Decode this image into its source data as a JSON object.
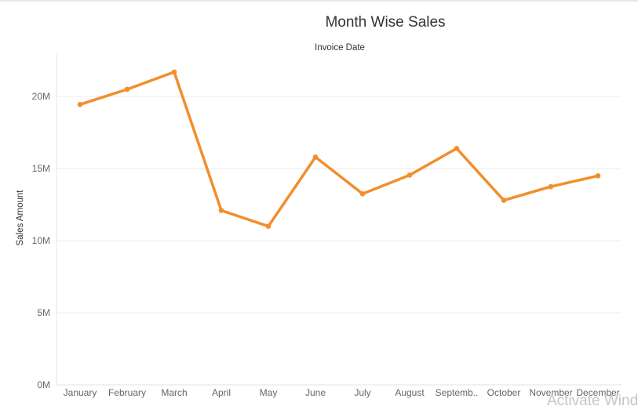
{
  "chart_data": {
    "type": "line",
    "title": "Month Wise Sales",
    "column_header": "Invoice Date",
    "xlabel": "",
    "ylabel": "Sales Amount",
    "categories": [
      "January",
      "February",
      "March",
      "April",
      "May",
      "June",
      "July",
      "August",
      "Septemb..",
      "October",
      "November",
      "December"
    ],
    "values": [
      19.45,
      20.5,
      21.7,
      12.1,
      11.0,
      15.8,
      13.25,
      14.55,
      16.4,
      12.8,
      13.75,
      14.5
    ],
    "unit": "M",
    "ylim": [
      0,
      23
    ],
    "yticks": [
      0,
      5,
      10,
      15,
      20
    ],
    "ytick_labels": [
      "0M",
      "5M",
      "10M",
      "15M",
      "20M"
    ],
    "grid": "horizontal",
    "line_color": "#f28e2b"
  },
  "overlay": {
    "watermark": "Activate Wind"
  }
}
